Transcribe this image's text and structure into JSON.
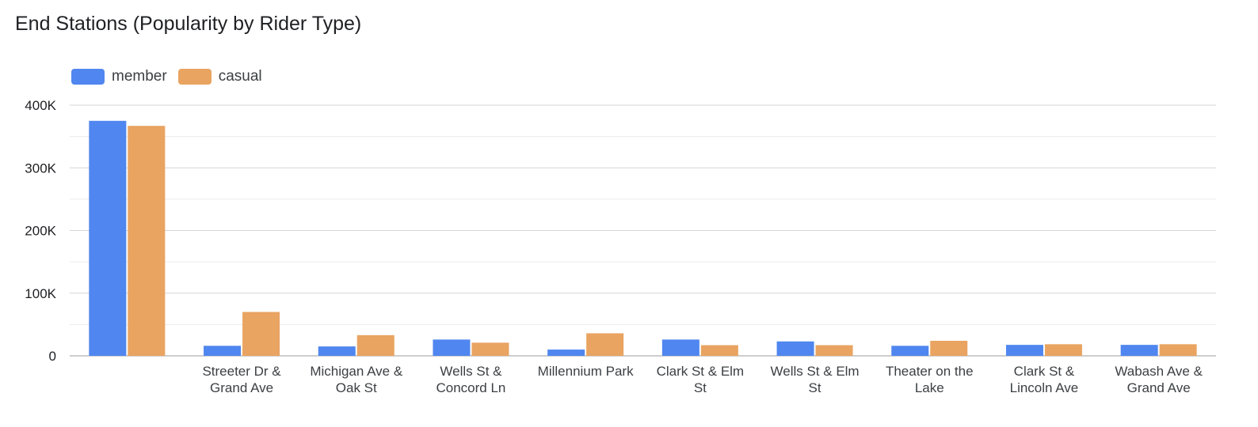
{
  "chart_data": {
    "type": "bar",
    "title": "End Stations (Popularity by Rider Type)",
    "categories": [
      "",
      "Streeter Dr & Grand Ave",
      "Michigan Ave & Oak St",
      "Wells St & Concord Ln",
      "Millennium Park",
      "Clark St & Elm St",
      "Wells St & Elm St",
      "Theater on the Lake",
      "Clark St & Lincoln Ave",
      "Wabash Ave & Grand Ave"
    ],
    "category_lines": [
      [
        ""
      ],
      [
        "Streeter Dr &",
        "Grand Ave"
      ],
      [
        "Michigan Ave &",
        "Oak St"
      ],
      [
        "Wells St &",
        "Concord Ln"
      ],
      [
        "Millennium Park"
      ],
      [
        "Clark St & Elm",
        "St"
      ],
      [
        "Wells St & Elm",
        "St"
      ],
      [
        "Theater on the",
        "Lake"
      ],
      [
        "Clark St &",
        "Lincoln Ave"
      ],
      [
        "Wabash Ave &",
        "Grand Ave"
      ]
    ],
    "series": [
      {
        "name": "member",
        "color": "#5086EF",
        "values": [
          375000,
          16000,
          15000,
          26000,
          10000,
          26000,
          23000,
          16000,
          17500,
          17500
        ]
      },
      {
        "name": "casual",
        "color": "#E9A461",
        "values": [
          367000,
          70000,
          33000,
          21000,
          36000,
          17000,
          17000,
          24000,
          18500,
          18500
        ]
      }
    ],
    "ylim": [
      0,
      400000
    ],
    "yticks": [
      0,
      100000,
      200000,
      300000,
      400000
    ],
    "ytick_labels": [
      "0",
      "100K",
      "200K",
      "300K",
      "400K"
    ],
    "xlabel": "",
    "ylabel": "",
    "grid": true,
    "legend_position": "top-left"
  }
}
